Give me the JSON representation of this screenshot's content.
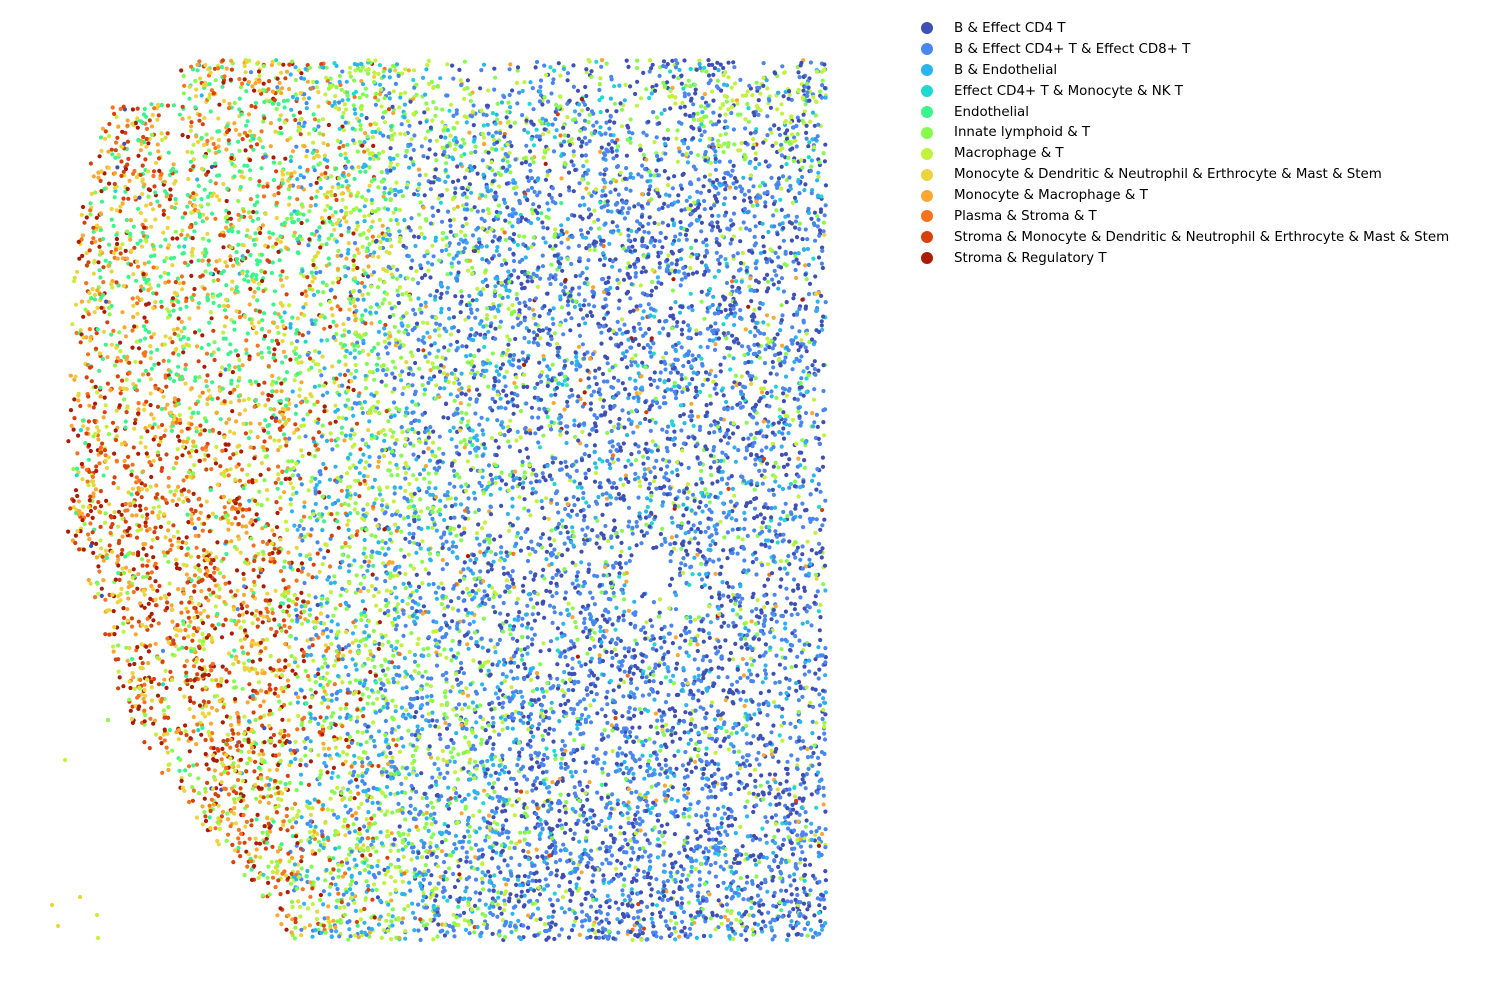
{
  "chart_data": {
    "type": "scatter",
    "title": "",
    "xlabel": "",
    "ylabel": "",
    "axes_visible": false,
    "grid": false,
    "legend_position": "outside-top-right",
    "series": [
      {
        "name": "B & Effect CD4 T",
        "color": "#3e4fb5"
      },
      {
        "name": "B & Effect CD4+ T & Effect CD8+ T",
        "color": "#4a86f0"
      },
      {
        "name": "B & Endothelial",
        "color": "#2bb5ee"
      },
      {
        "name": "Effect CD4+ T & Monocyte & NK T",
        "color": "#1ed9cf"
      },
      {
        "name": "Endothelial",
        "color": "#3bf48d"
      },
      {
        "name": "Innate lymphoid & T",
        "color": "#86fb4b"
      },
      {
        "name": "Macrophage & T",
        "color": "#c2f23b"
      },
      {
        "name": "Monocyte & Dendritic & Neutrophil & Erthrocyte & Mast & Stem",
        "color": "#ebd43c"
      },
      {
        "name": "Monocyte & Macrophage & T",
        "color": "#fba731"
      },
      {
        "name": "Plasma & Stroma & T",
        "color": "#f7721e"
      },
      {
        "name": "Stroma & Monocyte & Dendritic & Neutrophil & Erthrocyte & Mast & Stem",
        "color": "#d8410c"
      },
      {
        "name": "Stroma & Regulatory T",
        "color": "#ac1b04"
      }
    ]
  }
}
